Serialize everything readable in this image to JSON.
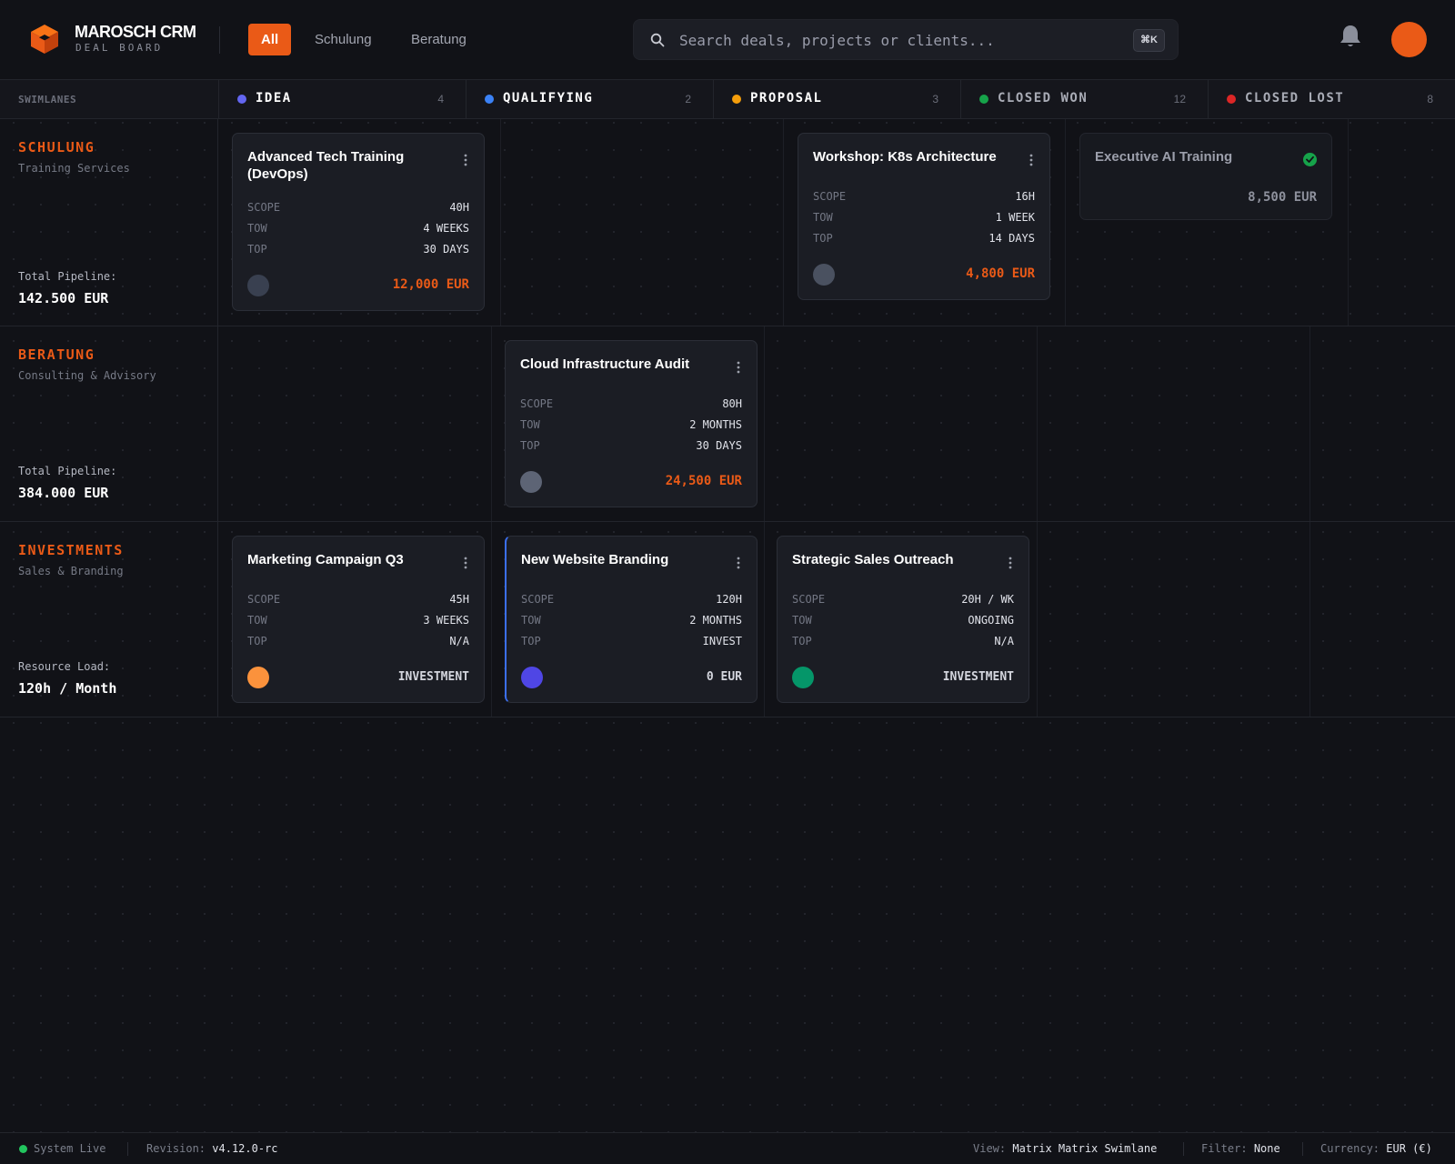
{
  "app": {
    "title": "MAROSCH CRM",
    "subtitle": "DEAL BOARD",
    "brand_color": "#ea5a17"
  },
  "filters": [
    {
      "label": "All",
      "active": true
    },
    {
      "label": "Schulung",
      "active": false
    },
    {
      "label": "Beratung",
      "active": false
    }
  ],
  "search": {
    "placeholder": "Search deals, projects or clients...",
    "value": "",
    "shortcut": "⌘K"
  },
  "board": {
    "swimlanes_label": "SWIMLANES",
    "columns": [
      {
        "title": "IDEA",
        "count": "4",
        "color": "#6366f1",
        "text_color": "#ffffff"
      },
      {
        "title": "QUALIFYING",
        "count": "2",
        "color": "#3b82f6",
        "text_color": "#ffffff"
      },
      {
        "title": "PROPOSAL",
        "count": "3",
        "color": "#f59e0b",
        "text_color": "#ffffff"
      },
      {
        "title": "CLOSED WON",
        "count": "12",
        "color": "#16a34a",
        "text_color": "#a9acb6"
      },
      {
        "title": "CLOSED LOST",
        "count": "8",
        "color": "#dc2626",
        "text_color": "#a9acb6"
      }
    ]
  },
  "lanes": [
    {
      "title": "SCHULUNG",
      "subtitle": "Training Services",
      "metric_label": "Total Pipeline:",
      "metric_value": "142.500 EUR",
      "cards": [
        {
          "title": "Advanced Tech Training (DevOps)",
          "fields": [
            [
              "SCOPE",
              "40H"
            ],
            [
              "TOW",
              "4 WEEKS"
            ],
            [
              "TOP",
              "30 DAYS"
            ]
          ],
          "amount": "12,000 EUR",
          "dot_color": "#394050"
        },
        {
          "title": "Workshop: K8s Architecture",
          "fields": [
            [
              "SCOPE",
              "16H"
            ],
            [
              "TOW",
              "1 WEEK"
            ],
            [
              "TOP",
              "14 DAYS"
            ]
          ],
          "amount": "4,800 EUR",
          "dot_color": "#4a5160"
        },
        {
          "title": "Executive AI Training",
          "amount": "8,500 EUR",
          "status": "won"
        }
      ]
    },
    {
      "title": "BERATUNG",
      "subtitle": "Consulting & Advisory",
      "metric_label": "Total Pipeline:",
      "metric_value": "384.000 EUR",
      "cards": [
        {
          "title": "Cloud Infrastructure Audit",
          "fields": [
            [
              "SCOPE",
              "80H"
            ],
            [
              "TOW",
              "2 MONTHS"
            ],
            [
              "TOP",
              "30 DAYS"
            ]
          ],
          "amount": "24,500 EUR",
          "dot_color": "#5d6475"
        }
      ]
    },
    {
      "title": "INVESTMENTS",
      "subtitle": "Sales & Branding",
      "metric_label": "Resource Load:",
      "metric_value": "120h / Month",
      "cards": [
        {
          "title": "Marketing Campaign Q3",
          "fields": [
            [
              "SCOPE",
              "45H"
            ],
            [
              "TOW",
              "3 WEEKS"
            ],
            [
              "TOP",
              "N/A"
            ]
          ],
          "amount": "INVESTMENT",
          "dot_color": "#fb923c"
        },
        {
          "title": "New Website Branding",
          "fields": [
            [
              "SCOPE",
              "120H"
            ],
            [
              "TOW",
              "2 MONTHS"
            ],
            [
              "TOP",
              "INVEST"
            ]
          ],
          "amount": "0 EUR",
          "dot_color": "#4f46e5"
        },
        {
          "title": "Strategic Sales Outreach",
          "fields": [
            [
              "SCOPE",
              "20H / WK"
            ],
            [
              "TOW",
              "ONGOING"
            ],
            [
              "TOP",
              "N/A"
            ]
          ],
          "amount": "INVESTMENT",
          "dot_color": "#059669"
        }
      ]
    }
  ],
  "statusbar": {
    "system": "System Live",
    "revision_label": "Revision:",
    "revision_value": "v4.12.0-rc",
    "view_label": "View:",
    "view_value": "Matrix Matrix Swimlane",
    "filter_label": "Filter:",
    "filter_value": "None",
    "currency_label": "Currency:",
    "currency_value": "EUR (€)"
  },
  "icons": [
    "cube-logo-icon",
    "search-icon",
    "bell-icon",
    "kebab-menu-icon",
    "check-circle-icon"
  ]
}
